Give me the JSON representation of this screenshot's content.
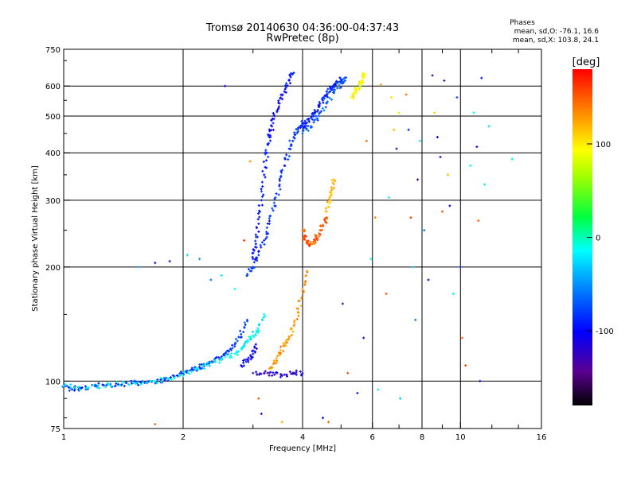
{
  "chart_data": {
    "type": "scatter",
    "title": "Tromsø 20140630 04:36:00-04:37:43",
    "subtitle": "RwPretec (8p)",
    "xlabel": "Frequency [MHz]",
    "ylabel": "Stationary phase Virtual Height [km]",
    "x_scale": "log",
    "y_scale": "log",
    "xlim": [
      1,
      16
    ],
    "ylim": [
      75,
      750
    ],
    "x_ticks": [
      1,
      2,
      4,
      6,
      8,
      10,
      16
    ],
    "x_tick_labels": [
      "1",
      "2",
      "4",
      "6",
      "8",
      "10",
      "16"
    ],
    "x_minor_ticks": [
      3,
      5,
      7,
      9,
      12,
      14
    ],
    "y_ticks": [
      75,
      100,
      200,
      300,
      400,
      500,
      600,
      750
    ],
    "y_tick_labels": [
      "75",
      "100",
      "200",
      "300",
      "400",
      "500",
      "600",
      "750"
    ],
    "grid": true,
    "stats": {
      "header": "Phases",
      "line_o": "mean, sd,O: -76.1, 16.6",
      "line_x": "mean, sd,X: 103.8, 24.1"
    },
    "colorbar": {
      "label": "[deg]",
      "range": [
        -180,
        180
      ],
      "ticks": [
        100,
        0,
        -100
      ],
      "tick_labels": [
        "100",
        "0",
        "-100"
      ],
      "colormap": "rainbow"
    },
    "traces": [
      {
        "name": "",
        "phase": -80,
        "points": [
          [
            1.0,
            97
          ],
          [
            1.05,
            95
          ],
          [
            1.1,
            96
          ],
          [
            1.2,
            97
          ],
          [
            1.3,
            98
          ],
          [
            1.4,
            98
          ],
          [
            1.5,
            99
          ],
          [
            1.6,
            99
          ],
          [
            1.7,
            100
          ],
          [
            1.8,
            101
          ],
          [
            1.9,
            103
          ],
          [
            2.0,
            105
          ],
          [
            2.1,
            107
          ],
          [
            2.2,
            109
          ],
          [
            2.3,
            111
          ],
          [
            2.4,
            113
          ],
          [
            2.5,
            116
          ],
          [
            2.6,
            120
          ],
          [
            2.7,
            125
          ],
          [
            2.8,
            133
          ],
          [
            2.9,
            145
          ]
        ]
      },
      {
        "name": "",
        "phase": -15,
        "points": [
          [
            1.0,
            97
          ],
          [
            1.15,
            96
          ],
          [
            1.3,
            98
          ],
          [
            1.5,
            99
          ],
          [
            1.7,
            100
          ],
          [
            1.9,
            102
          ],
          [
            2.1,
            106
          ],
          [
            2.3,
            110
          ],
          [
            2.5,
            114
          ],
          [
            2.7,
            118
          ],
          [
            2.8,
            122
          ],
          [
            2.9,
            128
          ],
          [
            3.0,
            132
          ],
          [
            3.1,
            136
          ],
          [
            3.2,
            150
          ]
        ]
      },
      {
        "name": "",
        "phase": -95,
        "points": [
          [
            3.0,
            210
          ],
          [
            3.05,
            230
          ],
          [
            3.1,
            260
          ],
          [
            3.15,
            300
          ],
          [
            3.2,
            350
          ],
          [
            3.25,
            400
          ],
          [
            3.3,
            440
          ],
          [
            3.35,
            470
          ],
          [
            3.4,
            500
          ],
          [
            3.5,
            540
          ],
          [
            3.6,
            580
          ],
          [
            3.7,
            620
          ],
          [
            3.8,
            650
          ]
        ]
      },
      {
        "name": "",
        "phase": -85,
        "points": [
          [
            2.9,
            190
          ],
          [
            3.0,
            200
          ],
          [
            3.1,
            215
          ],
          [
            3.2,
            235
          ],
          [
            3.3,
            260
          ],
          [
            3.4,
            290
          ],
          [
            3.5,
            330
          ],
          [
            3.6,
            370
          ],
          [
            3.7,
            410
          ],
          [
            3.8,
            440
          ],
          [
            3.9,
            465
          ],
          [
            4.0,
            480
          ]
        ]
      },
      {
        "name": "",
        "phase": -90,
        "points": [
          [
            4.0,
            470
          ],
          [
            4.1,
            480
          ],
          [
            4.2,
            495
          ],
          [
            4.3,
            510
          ],
          [
            4.4,
            530
          ],
          [
            4.5,
            550
          ],
          [
            4.6,
            570
          ],
          [
            4.7,
            590
          ],
          [
            4.8,
            605
          ],
          [
            4.9,
            615
          ],
          [
            5.0,
            625
          ]
        ]
      },
      {
        "name": "",
        "phase": -70,
        "points": [
          [
            4.0,
            450
          ],
          [
            4.2,
            470
          ],
          [
            4.4,
            500
          ],
          [
            4.6,
            540
          ],
          [
            4.8,
            580
          ],
          [
            5.0,
            610
          ],
          [
            5.1,
            630
          ]
        ]
      },
      {
        "name": "",
        "phase": 150,
        "points": [
          [
            4.0,
            250
          ],
          [
            4.05,
            240
          ],
          [
            4.1,
            232
          ],
          [
            4.2,
            230
          ],
          [
            4.3,
            235
          ],
          [
            4.4,
            245
          ],
          [
            4.5,
            258
          ],
          [
            4.6,
            270
          ]
        ]
      },
      {
        "name": "",
        "phase": 115,
        "points": [
          [
            4.6,
            280
          ],
          [
            4.7,
            300
          ],
          [
            4.75,
            320
          ],
          [
            4.8,
            340
          ]
        ]
      },
      {
        "name": "",
        "phase": 95,
        "points": [
          [
            5.3,
            560
          ],
          [
            5.4,
            575
          ],
          [
            5.5,
            590
          ],
          [
            5.6,
            610
          ],
          [
            5.7,
            630
          ],
          [
            5.75,
            645
          ]
        ]
      },
      {
        "name": "",
        "phase": 130,
        "points": [
          [
            3.3,
            108
          ],
          [
            3.4,
            112
          ],
          [
            3.5,
            118
          ],
          [
            3.6,
            124
          ],
          [
            3.7,
            130
          ],
          [
            3.8,
            140
          ],
          [
            3.9,
            155
          ],
          [
            4.0,
            175
          ],
          [
            4.1,
            195
          ]
        ]
      },
      {
        "name": "",
        "phase": -120,
        "points": [
          [
            3.0,
            105
          ],
          [
            3.2,
            105
          ],
          [
            3.4,
            104
          ],
          [
            3.6,
            104
          ],
          [
            3.8,
            105
          ],
          [
            4.0,
            105
          ]
        ]
      },
      {
        "name": "",
        "phase": -100,
        "points": [
          [
            2.8,
            110
          ],
          [
            2.9,
            114
          ],
          [
            3.0,
            118
          ],
          [
            3.05,
            125
          ]
        ]
      }
    ],
    "scattered_points": [
      {
        "x": 1.55,
        "y": 200,
        "phase": -40
      },
      {
        "x": 1.7,
        "y": 205,
        "phase": -110
      },
      {
        "x": 1.85,
        "y": 207,
        "phase": -100
      },
      {
        "x": 2.05,
        "y": 215,
        "phase": -30
      },
      {
        "x": 2.2,
        "y": 210,
        "phase": -50
      },
      {
        "x": 2.35,
        "y": 185,
        "phase": -60
      },
      {
        "x": 2.5,
        "y": 190,
        "phase": -20
      },
      {
        "x": 2.55,
        "y": 600,
        "phase": -110
      },
      {
        "x": 2.7,
        "y": 175,
        "phase": -15
      },
      {
        "x": 2.85,
        "y": 235,
        "phase": 160
      },
      {
        "x": 2.95,
        "y": 380,
        "phase": 130
      },
      {
        "x": 3.1,
        "y": 90,
        "phase": 150
      },
      {
        "x": 3.15,
        "y": 82,
        "phase": -130
      },
      {
        "x": 3.55,
        "y": 78,
        "phase": 120
      },
      {
        "x": 4.5,
        "y": 80,
        "phase": -110
      },
      {
        "x": 4.65,
        "y": 78,
        "phase": 145
      },
      {
        "x": 5.05,
        "y": 160,
        "phase": -130
      },
      {
        "x": 5.2,
        "y": 105,
        "phase": 160
      },
      {
        "x": 5.5,
        "y": 93,
        "phase": -95
      },
      {
        "x": 5.7,
        "y": 130,
        "phase": -110
      },
      {
        "x": 5.8,
        "y": 430,
        "phase": 145
      },
      {
        "x": 5.95,
        "y": 210,
        "phase": -10
      },
      {
        "x": 6.1,
        "y": 270,
        "phase": 135
      },
      {
        "x": 6.2,
        "y": 95,
        "phase": -20
      },
      {
        "x": 6.3,
        "y": 605,
        "phase": 125
      },
      {
        "x": 6.5,
        "y": 170,
        "phase": 150
      },
      {
        "x": 6.6,
        "y": 305,
        "phase": -20
      },
      {
        "x": 6.7,
        "y": 560,
        "phase": 105
      },
      {
        "x": 6.8,
        "y": 460,
        "phase": 120
      },
      {
        "x": 6.9,
        "y": 410,
        "phase": -120
      },
      {
        "x": 7.0,
        "y": 510,
        "phase": 105
      },
      {
        "x": 7.05,
        "y": 90,
        "phase": -35
      },
      {
        "x": 7.3,
        "y": 570,
        "phase": 140
      },
      {
        "x": 7.4,
        "y": 460,
        "phase": -90
      },
      {
        "x": 7.5,
        "y": 270,
        "phase": 160
      },
      {
        "x": 7.6,
        "y": 200,
        "phase": -30
      },
      {
        "x": 7.7,
        "y": 145,
        "phase": -60
      },
      {
        "x": 7.8,
        "y": 340,
        "phase": -140
      },
      {
        "x": 7.9,
        "y": 430,
        "phase": -20
      },
      {
        "x": 8.1,
        "y": 250,
        "phase": -60
      },
      {
        "x": 8.3,
        "y": 185,
        "phase": -110
      },
      {
        "x": 8.5,
        "y": 640,
        "phase": -140
      },
      {
        "x": 8.6,
        "y": 510,
        "phase": 110
      },
      {
        "x": 8.75,
        "y": 440,
        "phase": -100
      },
      {
        "x": 8.9,
        "y": 390,
        "phase": -130
      },
      {
        "x": 9.0,
        "y": 280,
        "phase": 150
      },
      {
        "x": 9.1,
        "y": 620,
        "phase": -130
      },
      {
        "x": 9.3,
        "y": 350,
        "phase": 120
      },
      {
        "x": 9.4,
        "y": 290,
        "phase": -110
      },
      {
        "x": 9.6,
        "y": 170,
        "phase": -15
      },
      {
        "x": 9.8,
        "y": 560,
        "phase": -70
      },
      {
        "x": 10.0,
        "y": 200,
        "phase": -80
      },
      {
        "x": 10.1,
        "y": 130,
        "phase": 145
      },
      {
        "x": 10.3,
        "y": 110,
        "phase": 160
      },
      {
        "x": 10.6,
        "y": 370,
        "phase": -20
      },
      {
        "x": 10.8,
        "y": 510,
        "phase": -15
      },
      {
        "x": 11.0,
        "y": 415,
        "phase": -110
      },
      {
        "x": 11.1,
        "y": 265,
        "phase": 150
      },
      {
        "x": 11.3,
        "y": 630,
        "phase": -90
      },
      {
        "x": 11.2,
        "y": 100,
        "phase": -120
      },
      {
        "x": 11.5,
        "y": 330,
        "phase": -20
      },
      {
        "x": 11.8,
        "y": 470,
        "phase": -30
      },
      {
        "x": 13.5,
        "y": 385,
        "phase": -20
      },
      {
        "x": 1.7,
        "y": 77,
        "phase": 150
      }
    ]
  }
}
